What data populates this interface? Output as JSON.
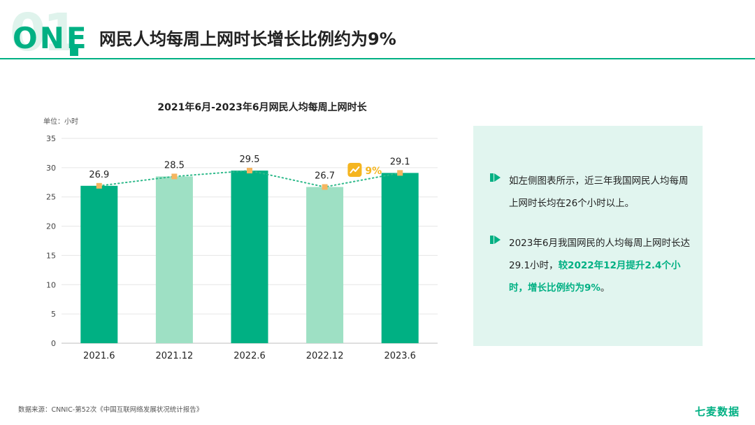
{
  "header": {
    "number": "01",
    "label": "ONE",
    "title": "网民人均每周上网时长增长比例约为9%"
  },
  "chart_data": {
    "type": "bar",
    "title": "2021年6月-2023年6月网民人均每周上网时长",
    "unit_label": "单位：小时",
    "categories": [
      "2021.6",
      "2021.12",
      "2022.6",
      "2022.12",
      "2023.6"
    ],
    "values": [
      26.9,
      28.5,
      29.5,
      26.7,
      29.1
    ],
    "value_labels": [
      "26.9",
      "28.5",
      "29.5",
      "26.7",
      "29.1"
    ],
    "yticks": [
      "0",
      "5",
      "10",
      "15",
      "20",
      "25",
      "30",
      "35"
    ],
    "ylim": [
      0,
      35
    ],
    "overlay_line": true,
    "growth_badge": "9%",
    "colors": {
      "dark": "#00b083",
      "light": "#9ee0c4",
      "marker": "#f5b560",
      "badge": "#f5b520",
      "trend": "#2eb98a"
    },
    "bar_styles": [
      "dark",
      "light",
      "dark",
      "light",
      "dark"
    ]
  },
  "panel": {
    "bullets": [
      {
        "text": "如左侧图表所示，近三年我国网民人均每周上网时长均在26个小时以上。",
        "highlight": ""
      },
      {
        "text": "2023年6月我国网民的人均每周上网时长达29.1小时，",
        "highlight": "较2022年12月提升2.4个小时，增长比例约为9%",
        "suffix": "。"
      }
    ]
  },
  "footer": {
    "source": "数据来源：CNNIC-第52次《中国互联网络发展状况统计报告》",
    "brand": "七麦数据"
  }
}
